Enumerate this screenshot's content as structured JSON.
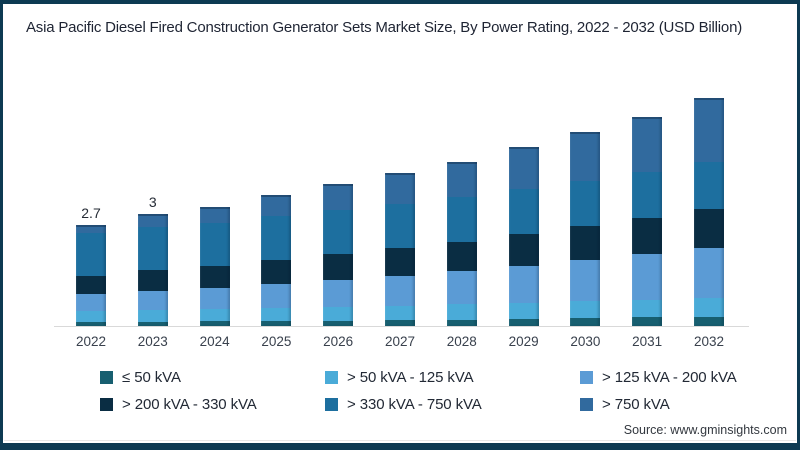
{
  "title": "Asia Pacific Diesel Fired Construction Generator Sets Market Size, By Power Rating, 2022 - 2032 (USD Billion)",
  "source_label": "Source: www.gminsights.com",
  "frame_color": "#0d3a52",
  "axis_color": "#d9d9d9",
  "chart_data": {
    "type": "bar",
    "stacked": true,
    "title": "Asia Pacific Diesel Fired Construction Generator Sets Market Size, By Power Rating, 2022 - 2032 (USD Billion)",
    "unit": "USD Billion",
    "categories": [
      "2022",
      "2023",
      "2024",
      "2025",
      "2026",
      "2027",
      "2028",
      "2029",
      "2030",
      "2031",
      "2032"
    ],
    "series": [
      {
        "name": "≤ 50 kVA",
        "color": "#175f70",
        "values": [
          0.1,
          0.11,
          0.12,
          0.13,
          0.14,
          0.15,
          0.17,
          0.19,
          0.21,
          0.23,
          0.25
        ]
      },
      {
        "name": "> 50 kVA - 125 kVA",
        "color": "#4aabd8",
        "values": [
          0.3,
          0.32,
          0.33,
          0.35,
          0.37,
          0.39,
          0.41,
          0.43,
          0.45,
          0.47,
          0.5
        ]
      },
      {
        "name": "> 125 kVA - 200 kVA",
        "color": "#5b9bd5",
        "values": [
          0.45,
          0.52,
          0.57,
          0.65,
          0.73,
          0.81,
          0.9,
          1.0,
          1.11,
          1.23,
          1.35
        ]
      },
      {
        "name": "> 200 kVA - 330 kVA",
        "color": "#0a2d43",
        "values": [
          0.5,
          0.55,
          0.58,
          0.63,
          0.68,
          0.73,
          0.78,
          0.84,
          0.9,
          0.96,
          1.05
        ]
      },
      {
        "name": "> 330 kVA - 750 kVA",
        "color": "#1d6f9f",
        "values": [
          1.15,
          1.16,
          1.17,
          1.18,
          1.19,
          1.2,
          1.21,
          1.22,
          1.23,
          1.24,
          1.25
        ]
      },
      {
        "name": "> 750 kVA",
        "color": "#316a9e",
        "values": [
          0.2,
          0.34,
          0.43,
          0.56,
          0.69,
          0.82,
          0.93,
          1.12,
          1.3,
          1.47,
          1.7
        ]
      }
    ],
    "totals": [
      2.7,
      3.0,
      3.2,
      3.5,
      3.8,
      4.1,
      4.4,
      4.8,
      5.2,
      5.6,
      6.1
    ],
    "bar_total_labels": [
      "2.7",
      "3",
      "",
      "",
      "",
      "",
      "",
      "",
      "",
      "",
      ""
    ],
    "ylim": [
      0,
      6.3
    ],
    "gridlines": false,
    "legend_position": "bottom"
  }
}
